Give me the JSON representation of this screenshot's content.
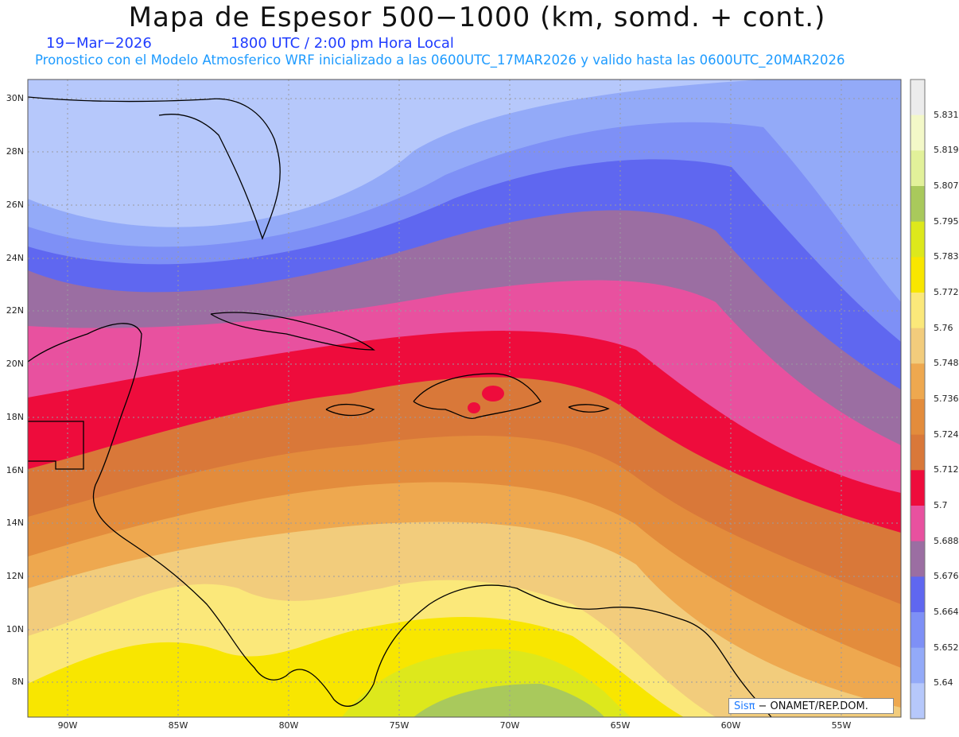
{
  "title": "Mapa de Espesor 500−1000 (km, somd. + cont.)",
  "date": "19−Mar−2026",
  "time": "1800 UTC / 2:00 pm Hora Local",
  "forecast": "Pronostico con el Modelo Atmosferico WRF inicializado a las 0600UTC_17MAR2026 y valido hasta las  0600UTC_20MAR2026",
  "credit": {
    "logo": "Sisπ",
    "text": "− ONAMET/REP.DOM."
  },
  "lat_labels": [
    "30N",
    "28N",
    "26N",
    "24N",
    "22N",
    "20N",
    "18N",
    "16N",
    "14N",
    "12N",
    "10N",
    "8N"
  ],
  "lon_labels": [
    "90W",
    "85W",
    "80W",
    "75W",
    "70W",
    "65W",
    "60W",
    "55W"
  ],
  "colorbar": [
    {
      "label": "5.831",
      "color": "#ececec"
    },
    {
      "label": "5.819",
      "color": "#f3f8c8"
    },
    {
      "label": "5.807",
      "color": "#e2f19a"
    },
    {
      "label": "5.795",
      "color": "#a9c95c"
    },
    {
      "label": "5.783",
      "color": "#dde81c"
    },
    {
      "label": "5.772",
      "color": "#f8e600"
    },
    {
      "label": "5.76",
      "color": "#fbe87a"
    },
    {
      "label": "5.748",
      "color": "#f2cc7c"
    },
    {
      "label": "5.736",
      "color": "#eea84f"
    },
    {
      "label": "5.724",
      "color": "#e38c3c"
    },
    {
      "label": "5.712",
      "color": "#d97839"
    },
    {
      "label": "5.7",
      "color": "#ee0c3c"
    },
    {
      "label": "5.688",
      "color": "#e8519f"
    },
    {
      "label": "5.676",
      "color": "#9b6ea2"
    },
    {
      "label": "5.664",
      "color": "#5f67f0"
    },
    {
      "label": "5.652",
      "color": "#7e90f6"
    },
    {
      "label": "5.64",
      "color": "#93aaf8"
    },
    {
      "label": "",
      "color": "#b6c8fb"
    }
  ]
}
